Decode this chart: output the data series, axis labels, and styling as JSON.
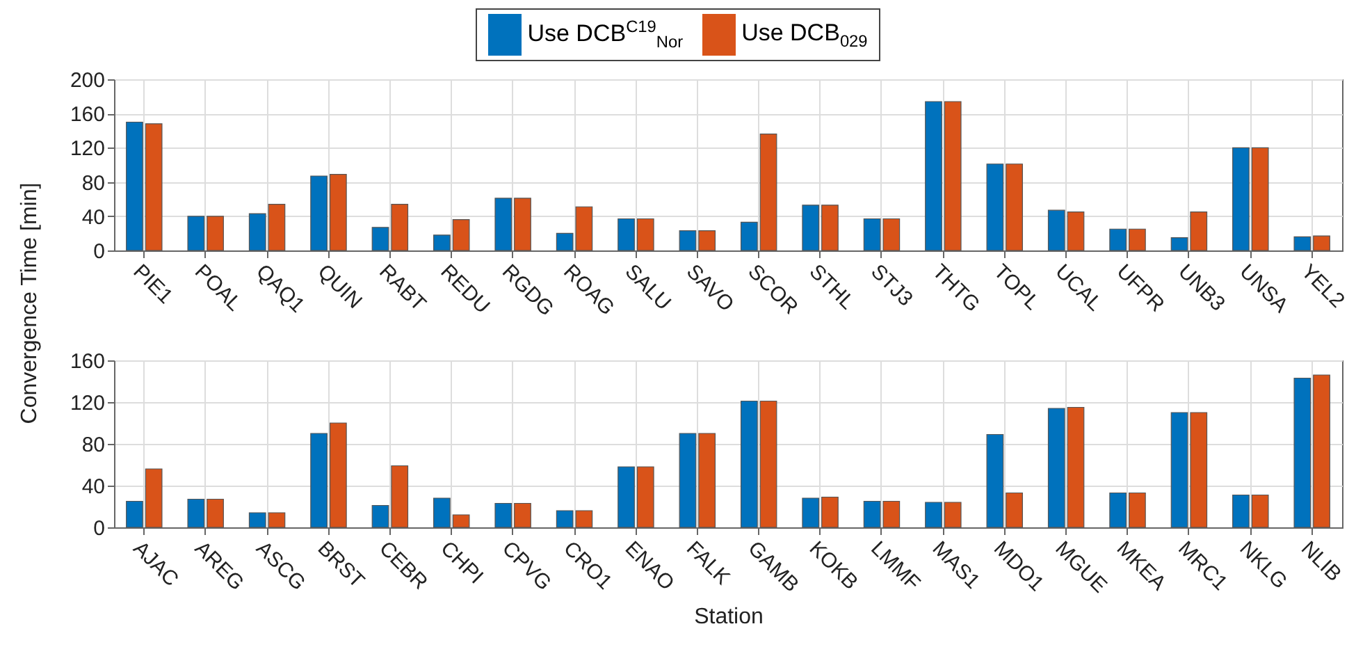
{
  "chart_data": [
    {
      "type": "bar",
      "ylabel": "Convergence Time [min]",
      "categories": [
        "PIE1",
        "POAL",
        "QAQ1",
        "QUIN",
        "RABT",
        "REDU",
        "RGDG",
        "ROAG",
        "SALU",
        "SAVO",
        "SCOR",
        "STHL",
        "STJ3",
        "THTG",
        "TOPL",
        "UCAL",
        "UFPR",
        "UNB3",
        "UNSA",
        "YEL2"
      ],
      "series": [
        {
          "name": "Use DCB$^{C19}$$_{Nor}$",
          "color": "#0072bd",
          "values": [
            150,
            40,
            43,
            87,
            27,
            18,
            61,
            20,
            37,
            23,
            33,
            53,
            37,
            174,
            101,
            47,
            25,
            15,
            120,
            16
          ]
        },
        {
          "name": "Use DCB$_{029}$",
          "color": "#d95319",
          "values": [
            148,
            40,
            54,
            89,
            54,
            36,
            61,
            51,
            37,
            23,
            136,
            53,
            37,
            174,
            101,
            45,
            25,
            45,
            120,
            17
          ]
        }
      ],
      "ylim": [
        0,
        200
      ],
      "yticks": [
        0,
        40,
        80,
        120,
        160,
        200
      ],
      "grid": true,
      "legend": "top"
    },
    {
      "type": "bar",
      "xlabel": "Station",
      "categories": [
        "AJAC",
        "AREG",
        "ASCG",
        "BRST",
        "CEBR",
        "CHPI",
        "CPVG",
        "CRO1",
        "ENAO",
        "FALK",
        "GAMB",
        "KOKB",
        "LMMF",
        "MAS1",
        "MDO1",
        "MGUE",
        "MKEA",
        "MRC1",
        "NKLG",
        "NLIB"
      ],
      "series": [
        {
          "color": "#0072bd",
          "values": [
            25,
            27,
            14,
            90,
            21,
            28,
            23,
            16,
            58,
            90,
            121,
            28,
            25,
            24,
            89,
            114,
            33,
            110,
            31,
            143
          ]
        },
        {
          "color": "#d95319",
          "values": [
            56,
            27,
            14,
            100,
            59,
            12,
            23,
            16,
            58,
            90,
            121,
            29,
            25,
            24,
            33,
            115,
            33,
            110,
            31,
            146
          ]
        }
      ],
      "ylim": [
        0,
        160
      ],
      "yticks": [
        0,
        40,
        80,
        120,
        160
      ],
      "grid": true
    }
  ]
}
